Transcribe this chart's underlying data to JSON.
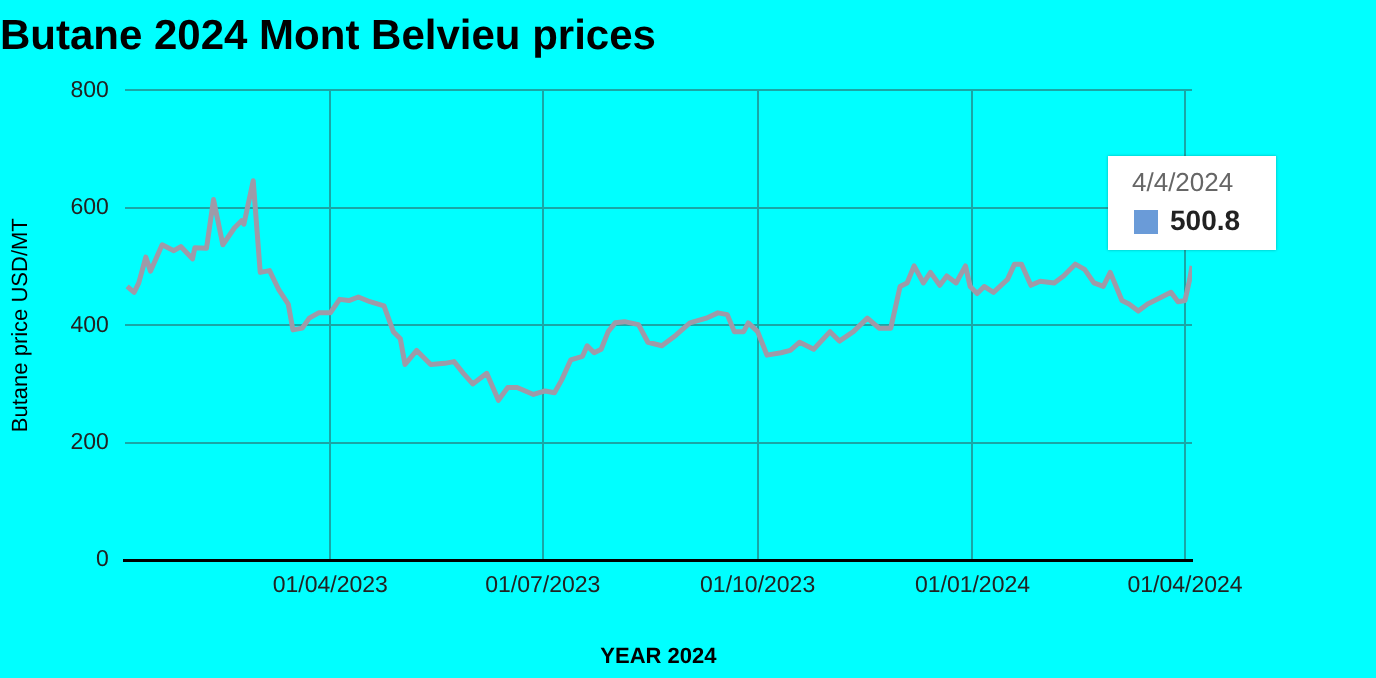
{
  "chart_data": {
    "type": "line",
    "title": "Butane 2024 Mont Belvieu prices",
    "xlabel": "YEAR 2024",
    "ylabel": "Butane price USD/MT",
    "x": [
      "2023-01-04",
      "2023-01-07",
      "2023-01-09",
      "2023-01-12",
      "2023-01-14",
      "2023-01-19",
      "2023-01-24",
      "2023-01-27",
      "2023-02-01",
      "2023-02-02",
      "2023-02-07",
      "2023-02-10",
      "2023-02-14",
      "2023-02-19",
      "2023-02-22",
      "2023-02-23",
      "2023-02-27",
      "2023-03-02",
      "2023-03-06",
      "2023-03-10",
      "2023-03-14",
      "2023-03-16",
      "2023-03-20",
      "2023-03-23",
      "2023-03-27",
      "2023-04-01",
      "2023-04-05",
      "2023-04-09",
      "2023-04-13",
      "2023-04-18",
      "2023-04-24",
      "2023-04-28",
      "2023-05-01",
      "2023-05-03",
      "2023-05-08",
      "2023-05-14",
      "2023-05-20",
      "2023-05-24",
      "2023-05-28",
      "2023-06-01",
      "2023-06-07",
      "2023-06-12",
      "2023-06-16",
      "2023-06-20",
      "2023-06-27",
      "2023-07-02",
      "2023-07-06",
      "2023-07-09",
      "2023-07-13",
      "2023-07-18",
      "2023-07-20",
      "2023-07-23",
      "2023-07-26",
      "2023-07-29",
      "2023-08-01",
      "2023-08-05",
      "2023-08-11",
      "2023-08-15",
      "2023-08-21",
      "2023-08-27",
      "2023-09-02",
      "2023-09-09",
      "2023-09-14",
      "2023-09-18",
      "2023-09-21",
      "2023-09-25",
      "2023-09-27",
      "2023-10-01",
      "2023-10-05",
      "2023-10-11",
      "2023-10-15",
      "2023-10-19",
      "2023-10-25",
      "2023-11-01",
      "2023-11-05",
      "2023-11-11",
      "2023-11-17",
      "2023-11-22",
      "2023-11-27",
      "2023-12-01",
      "2023-12-04",
      "2023-12-07",
      "2023-12-11",
      "2023-12-14",
      "2023-12-18",
      "2023-12-21",
      "2023-12-25",
      "2023-12-29",
      "2023-12-31",
      "2024-01-03",
      "2024-01-06",
      "2024-01-10",
      "2024-01-16",
      "2024-01-19",
      "2024-01-22",
      "2024-01-26",
      "2024-01-30",
      "2024-02-05",
      "2024-02-09",
      "2024-02-14",
      "2024-02-18",
      "2024-02-22",
      "2024-02-26",
      "2024-02-29",
      "2024-03-05",
      "2024-03-08",
      "2024-03-12",
      "2024-03-16",
      "2024-03-22",
      "2024-03-26",
      "2024-03-29",
      "2024-04-01",
      "2024-04-03",
      "2024-04-04"
    ],
    "series": [
      {
        "color": "#9e9aa8",
        "values": [
          466,
          456,
          472,
          516,
          492,
          537,
          527,
          534,
          513,
          532,
          531,
          614,
          537,
          566,
          578,
          572,
          646,
          490,
          493,
          460,
          436,
          392,
          395,
          412,
          421,
          421,
          444,
          442,
          448,
          440,
          433,
          389,
          377,
          333,
          357,
          333,
          335,
          338,
          318,
          300,
          318,
          272,
          294,
          294,
          282,
          288,
          285,
          306,
          341,
          347,
          365,
          353,
          359,
          389,
          404,
          406,
          401,
          371,
          365,
          383,
          404,
          412,
          421,
          418,
          389,
          389,
          404,
          389,
          349,
          353,
          357,
          371,
          359,
          389,
          373,
          389,
          412,
          395,
          395,
          466,
          472,
          501,
          472,
          490,
          468,
          484,
          472,
          501,
          466,
          454,
          466,
          456,
          478,
          504,
          504,
          468,
          475,
          472,
          484,
          504,
          495,
          472,
          466,
          490,
          442,
          436,
          424,
          436,
          448,
          456,
          440,
          442,
          478,
          500.8
        ]
      }
    ],
    "xlim": [
      "2023-01-03",
      "2024-04-04"
    ],
    "xticks": [
      {
        "value": "2023-04-01",
        "label": "01/04/2023"
      },
      {
        "value": "2023-07-01",
        "label": "01/07/2023"
      },
      {
        "value": "2023-10-01",
        "label": "01/10/2023"
      },
      {
        "value": "2024-01-01",
        "label": "01/01/2024"
      },
      {
        "value": "2024-04-01",
        "label": "01/04/2024"
      }
    ],
    "ylim": [
      0,
      800
    ],
    "yticks": [
      0,
      200,
      400,
      600,
      800
    ],
    "grid": true,
    "marker": "none",
    "line_style": "solid",
    "legend": false,
    "annotations": [
      {
        "text": "4/4/2024",
        "x": "2024-04-04",
        "y": 500.8
      },
      {
        "text": "500.8",
        "x": "2024-04-04",
        "y": 500.8
      }
    ]
  }
}
